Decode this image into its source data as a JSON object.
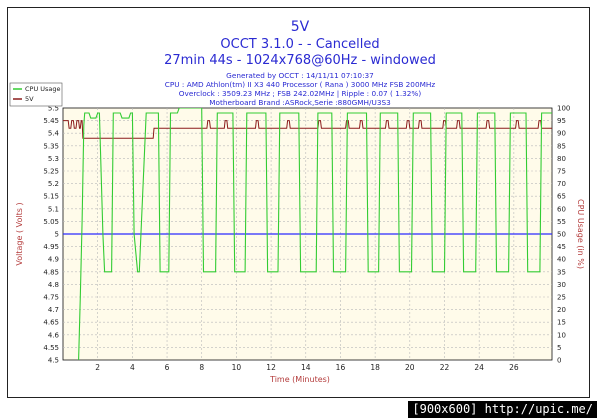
{
  "chart_data": {
    "type": "line",
    "title": "5V",
    "subtitle": "OCCT 3.1.0 -  - Cancelled",
    "subtitle2": "27min 44s - 1024x768@60Hz - windowed",
    "info_lines": [
      "Generated by OCCT : 14/11/11 07:10:37",
      "CPU : AMD Athlon(tm) II X3 440 Processor ( Rana ) 3000 MHz FSB 200MHz",
      "Overclock : 3509.23 MHz ; FSB 242.02MHz | Ripple : 0.07 ( 1.32%)",
      "Motherboard Brand :ASRock,Serie :880GMH/U3S3"
    ],
    "xlabel": "Time (Minutes)",
    "ylabel_left": "Voltage ( Volts )",
    "ylabel_right": "CPU Usage (in %)",
    "xlim": [
      0,
      28.2
    ],
    "ylim_left": [
      4.5,
      5.5
    ],
    "ylim_right": [
      0,
      100
    ],
    "x_ticks": [
      "2",
      "4",
      "6",
      "8",
      "10",
      "12",
      "14",
      "16",
      "18",
      "20",
      "22",
      "24",
      "26"
    ],
    "y_ticks_left": [
      "4.5",
      "4.55",
      "4.6",
      "4.65",
      "4.7",
      "4.75",
      "4.8",
      "4.85",
      "4.9",
      "4.95",
      "5",
      "5.05",
      "5.1",
      "5.15",
      "5.2",
      "5.25",
      "5.3",
      "5.35",
      "5.4",
      "5.45",
      "5.5"
    ],
    "y_ticks_right": [
      "0",
      "5",
      "10",
      "15",
      "20",
      "25",
      "30",
      "35",
      "40",
      "45",
      "50",
      "55",
      "60",
      "65",
      "70",
      "75",
      "80",
      "85",
      "90",
      "95",
      "100"
    ],
    "reference_line": 5.0,
    "legend": [
      "CPU Usage",
      "5V"
    ],
    "series": [
      {
        "name": "5V",
        "axis": "left",
        "color": "#8b1a1a",
        "x": [
          0,
          0.3,
          0.35,
          0.45,
          0.5,
          0.6,
          0.65,
          0.75,
          0.8,
          0.9,
          0.95,
          1.0,
          1.05,
          1.1,
          1.15,
          5.2,
          5.25,
          8.3,
          8.35,
          8.45,
          8.5,
          9.3,
          9.35,
          9.45,
          9.5,
          11.1,
          11.15,
          11.25,
          11.3,
          12.9,
          12.95,
          13.05,
          13.1,
          14.7,
          14.75,
          14.85,
          14.9,
          16.3,
          16.35,
          16.45,
          16.5,
          17.1,
          17.15,
          17.25,
          17.3,
          18.6,
          18.65,
          18.75,
          18.8,
          19.8,
          19.85,
          19.95,
          20.0,
          20.5,
          20.55,
          20.65,
          20.7,
          21.9,
          21.95,
          22.05,
          22.1,
          22.7,
          22.75,
          22.85,
          22.9,
          24.4,
          24.45,
          24.55,
          24.6,
          26.1,
          26.15,
          26.25,
          26.3,
          27.4,
          27.45,
          27.55,
          27.6,
          28.2
        ],
        "values": [
          5.45,
          5.45,
          5.42,
          5.42,
          5.45,
          5.45,
          5.42,
          5.42,
          5.45,
          5.45,
          5.42,
          5.42,
          5.45,
          5.45,
          5.38,
          5.38,
          5.42,
          5.42,
          5.45,
          5.45,
          5.42,
          5.42,
          5.45,
          5.45,
          5.42,
          5.42,
          5.45,
          5.45,
          5.42,
          5.42,
          5.45,
          5.45,
          5.42,
          5.42,
          5.45,
          5.45,
          5.42,
          5.42,
          5.45,
          5.45,
          5.42,
          5.42,
          5.45,
          5.45,
          5.42,
          5.42,
          5.45,
          5.45,
          5.42,
          5.42,
          5.45,
          5.45,
          5.42,
          5.42,
          5.45,
          5.45,
          5.42,
          5.42,
          5.45,
          5.45,
          5.42,
          5.42,
          5.45,
          5.45,
          5.42,
          5.42,
          5.45,
          5.45,
          5.42,
          5.42,
          5.45,
          5.45,
          5.42,
          5.42,
          5.45,
          5.45,
          5.42,
          5.42
        ]
      },
      {
        "name": "CPU Usage",
        "axis": "right",
        "color": "#33cc33",
        "x": [
          0.9,
          1.0,
          1.1,
          1.2,
          1.25,
          1.5,
          1.6,
          1.9,
          2.0,
          2.1,
          2.3,
          2.4,
          2.8,
          2.9,
          3.3,
          3.4,
          3.8,
          3.9,
          4.0,
          4.1,
          4.3,
          4.4,
          4.8,
          4.9,
          5.5,
          5.6,
          5.7,
          6.1,
          6.2,
          6.6,
          6.7,
          8.0,
          8.1,
          8.3,
          8.4,
          8.8,
          8.9,
          9.8,
          9.9,
          10.0,
          10.1,
          10.5,
          10.6,
          11.7,
          11.8,
          11.9,
          12.0,
          12.4,
          12.5,
          13.6,
          13.7,
          14.1,
          14.2,
          14.6,
          14.7,
          15.5,
          15.6,
          15.8,
          15.9,
          16.3,
          16.4,
          17.5,
          17.6,
          17.7,
          17.8,
          18.2,
          18.3,
          19.3,
          19.4,
          19.6,
          19.7,
          20.1,
          20.2,
          21.2,
          21.3,
          21.5,
          21.6,
          22.0,
          22.1,
          23.0,
          23.1,
          23.3,
          23.4,
          23.8,
          23.9,
          24.9,
          25.0,
          25.2,
          25.3,
          25.7,
          25.8,
          26.7,
          26.8,
          27.0,
          27.1,
          27.5,
          27.6,
          28.2
        ],
        "values": [
          0,
          25,
          55,
          93,
          98,
          98,
          96,
          96,
          98,
          98,
          50,
          35,
          35,
          98,
          98,
          96,
          96,
          98,
          98,
          50,
          35,
          35,
          98,
          98,
          98,
          35,
          35,
          35,
          98,
          98,
          100,
          100,
          35,
          35,
          35,
          35,
          98,
          98,
          35,
          35,
          35,
          35,
          98,
          98,
          35,
          35,
          35,
          35,
          98,
          98,
          35,
          35,
          35,
          35,
          98,
          98,
          35,
          35,
          35,
          35,
          98,
          98,
          35,
          35,
          35,
          35,
          98,
          98,
          35,
          35,
          35,
          35,
          98,
          98,
          35,
          35,
          35,
          35,
          98,
          98,
          35,
          35,
          35,
          35,
          98,
          98,
          35,
          35,
          35,
          35,
          98,
          98,
          35,
          35,
          35,
          35,
          98,
          98
        ]
      }
    ]
  },
  "footer": {
    "badge": "[900x600] http://upic.me/"
  }
}
